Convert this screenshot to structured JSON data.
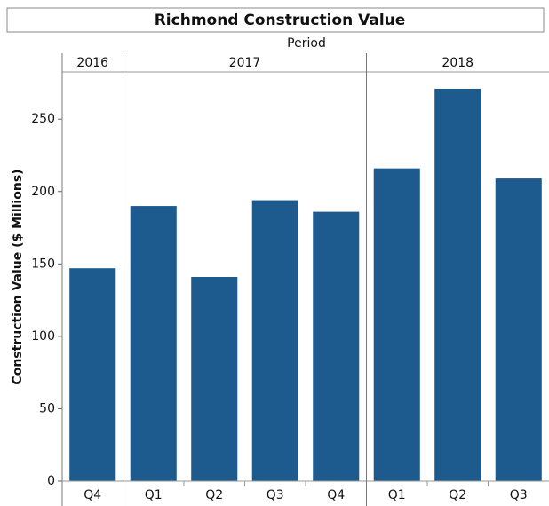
{
  "chart_data": {
    "type": "bar",
    "title": "Richmond Construction Value",
    "x_label": "Period",
    "y_label": "Construction Value ($ Millions)",
    "groups": [
      {
        "name": "2016",
        "count": 1
      },
      {
        "name": "2017",
        "count": 4
      },
      {
        "name": "2018",
        "count": 3
      }
    ],
    "categories": [
      "Q4",
      "Q1",
      "Q2",
      "Q3",
      "Q4",
      "Q1",
      "Q2",
      "Q3"
    ],
    "values": [
      147,
      190,
      141,
      194,
      186,
      216,
      271,
      209
    ],
    "color": "#1d5a8e",
    "ylim": [
      0,
      282
    ],
    "yticks": [
      0,
      50,
      100,
      150,
      200,
      250
    ]
  }
}
